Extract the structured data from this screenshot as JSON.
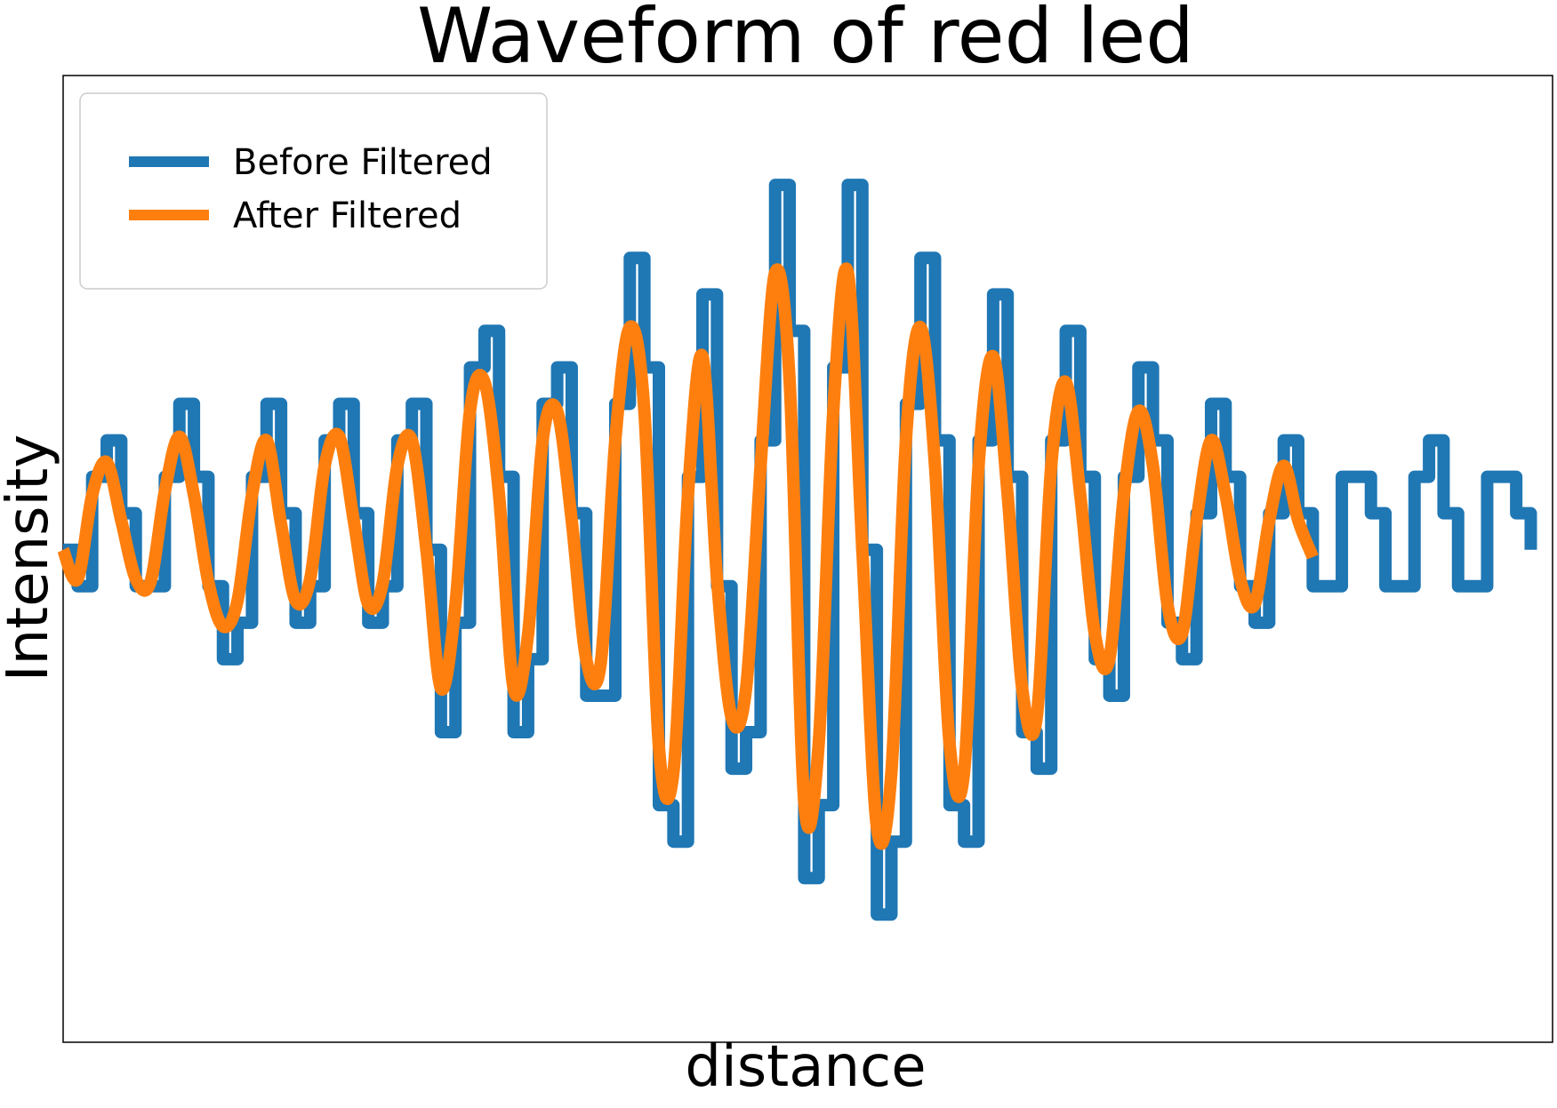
{
  "chart_data": {
    "type": "line",
    "title": "Waveform of red led",
    "xlabel": "distance",
    "ylabel": "Intensity",
    "xlim": [
      0,
      410
    ],
    "ylim": [
      -13.5,
      13
    ],
    "grid": false,
    "ticks_visible": false,
    "legend": {
      "placement": "top-left"
    },
    "series": [
      {
        "name": "Before Filtered",
        "color": "#1f77b4",
        "x": [
          0,
          4,
          8,
          12,
          16,
          20,
          24,
          28,
          32,
          36,
          40,
          44,
          48,
          52,
          56,
          60,
          64,
          68,
          72,
          76,
          80,
          84,
          88,
          92,
          96,
          100,
          104,
          108,
          112,
          116,
          120,
          124,
          128,
          132,
          136,
          140,
          144,
          148,
          152,
          156,
          160,
          164,
          168,
          172,
          176,
          180,
          184,
          188,
          192,
          196,
          200,
          204,
          208,
          212,
          216,
          220,
          224,
          228,
          232,
          236,
          240,
          244,
          248,
          252,
          256,
          260,
          264,
          268,
          272,
          276,
          280,
          284,
          288,
          292,
          296,
          300,
          304,
          308,
          312,
          316,
          320,
          324,
          328,
          332,
          336,
          340,
          344,
          348,
          352,
          356,
          360,
          364,
          368,
          372,
          376,
          380,
          384,
          388,
          392,
          396,
          400,
          404
        ],
        "y": [
          0,
          -1,
          2,
          3,
          1,
          -1,
          -1,
          2,
          4,
          2,
          -1,
          -3,
          -2,
          2,
          4,
          1,
          -2,
          -1,
          3,
          4,
          1,
          -2,
          -1,
          3,
          4,
          0,
          -5,
          -2,
          5,
          6,
          2,
          -5,
          -3,
          4,
          5,
          1,
          -4,
          -4,
          4,
          8,
          5,
          -7,
          -8,
          2,
          7,
          -1,
          -6,
          -5,
          3,
          10,
          6,
          -9,
          -7,
          5,
          10,
          0,
          -10,
          -8,
          4,
          8,
          3,
          -7,
          -8,
          3,
          7,
          2,
          -5,
          -6,
          3,
          6,
          2,
          -3,
          -4,
          2,
          5,
          3,
          -2,
          -3,
          1,
          4,
          2,
          -1,
          -2,
          1,
          3,
          1,
          -1,
          -1,
          2,
          2,
          1,
          -1,
          -1,
          2,
          3,
          1,
          -1,
          -1,
          2,
          2,
          1,
          0
        ]
      },
      {
        "name": "After Filtered",
        "color": "#ff7f0e",
        "x": [
          0,
          4,
          8,
          12,
          16,
          20,
          24,
          28,
          32,
          36,
          40,
          44,
          48,
          52,
          56,
          60,
          64,
          68,
          72,
          76,
          80,
          84,
          88,
          92,
          96,
          100,
          104,
          108,
          112,
          116,
          120,
          124,
          128,
          132,
          136,
          140,
          144,
          148,
          152,
          156,
          160,
          164,
          168,
          172,
          176,
          180,
          184,
          188,
          192,
          196,
          200,
          204,
          208,
          212,
          216,
          220,
          224,
          228,
          232,
          236,
          240,
          244,
          248,
          252,
          256,
          260,
          264,
          268,
          272,
          276,
          280,
          284,
          288,
          292,
          296,
          300,
          304,
          308,
          312,
          316,
          320,
          324,
          328,
          332,
          336,
          340,
          344
        ],
        "y": [
          0,
          -0.8,
          1.5,
          2.4,
          0.8,
          -0.8,
          -0.9,
          1.6,
          3.1,
          1.5,
          -0.9,
          -2.1,
          -1.4,
          1.5,
          3.0,
          0.7,
          -1.4,
          -0.8,
          2.3,
          3.1,
          0.8,
          -1.5,
          -0.9,
          2.3,
          3.0,
          0,
          -3.8,
          -1.5,
          3.8,
          4.6,
          1.5,
          -3.8,
          -2.3,
          3.0,
          3.8,
          0.8,
          -3.0,
          -3.1,
          3.0,
          6.1,
          3.8,
          -5.4,
          -6.1,
          1.5,
          5.3,
          -0.8,
          -4.6,
          -3.8,
          2.3,
          7.6,
          4.6,
          -6.9,
          -5.3,
          3.8,
          7.6,
          0,
          -7.6,
          -6.1,
          3.0,
          6.1,
          2.3,
          -5.3,
          -6.1,
          2.3,
          5.3,
          1.5,
          -3.8,
          -4.6,
          2.3,
          4.6,
          1.5,
          -2.3,
          -3.0,
          1.5,
          3.8,
          2.3,
          -1.5,
          -2.3,
          0.8,
          3.0,
          1.5,
          -0.8,
          -1.5,
          0.8,
          2.3,
          0.8,
          -0.2
        ]
      }
    ]
  }
}
